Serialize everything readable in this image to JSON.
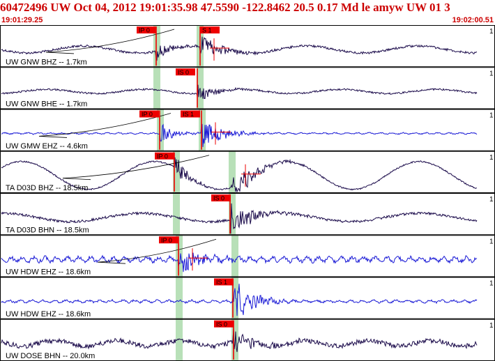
{
  "header": {
    "title": "60472496 UW Oct 04, 2012 19:01:35.98    47.5590  -122.8462 20.5 0.17 Md le amyw UW 01   3",
    "start_time": "19:01:29.25",
    "end_time": "19:02:00.51"
  },
  "colors": {
    "title": "#cc0000",
    "pick_box": "#ee0000",
    "trace_short_period": "#1a1ad6",
    "trace_broadband": "#1a0a4a",
    "window_shade": "#b8e0b8",
    "panel_border": "#000000"
  },
  "traces": [
    {
      "label": "UW GNW BHZ -- 1.7km",
      "scale": "1",
      "picks": [
        {
          "label": "IP 0"
        },
        {
          "label": "S 1"
        }
      ]
    },
    {
      "label": "UW GNW BHE -- 1.7km",
      "scale": "1",
      "picks": [
        {
          "label": "IS 0"
        }
      ]
    },
    {
      "label": "UW GMW EHZ -- 4.6km",
      "scale": "1",
      "picks": [
        {
          "label": "IP 0"
        },
        {
          "label": "IS 1"
        }
      ]
    },
    {
      "label": "TA D03D BHZ -- 18.5km",
      "scale": "1",
      "picks": [
        {
          "label": "IP 0"
        }
      ]
    },
    {
      "label": "TA D03D BHN -- 18.5km",
      "scale": "1",
      "picks": [
        {
          "label": "IS 0"
        }
      ]
    },
    {
      "label": "UW HDW EHZ -- 18.6km",
      "scale": "1",
      "picks": [
        {
          "label": "IP 0"
        }
      ]
    },
    {
      "label": "UW HDW EHZ -- 18.6km",
      "scale": "1",
      "picks": [
        {
          "label": "IS 1"
        }
      ]
    },
    {
      "label": "UW DOSE BHN -- 20.0km",
      "scale": "1",
      "picks": [
        {
          "label": "IS 0"
        }
      ]
    }
  ]
}
